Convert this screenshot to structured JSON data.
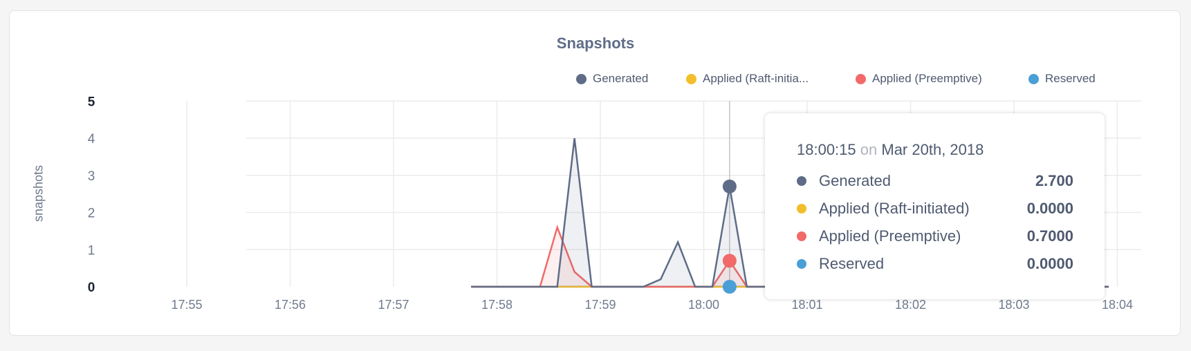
{
  "chart_data": {
    "type": "area",
    "title": "Snapshots",
    "ylabel": "snapshots",
    "xlabel": "",
    "ylim": [
      0,
      5
    ],
    "y_ticks": [
      "0",
      "1",
      "2",
      "3",
      "4",
      "5"
    ],
    "xlim": [
      "17:54:00",
      "18:04:15"
    ],
    "x_ticks": [
      "17:55",
      "17:56",
      "17:57",
      "17:58",
      "17:59",
      "18:00",
      "18:01",
      "18:02",
      "18:03",
      "18:04"
    ],
    "grid": true,
    "legend_placement": "top-right",
    "x": [
      "17:57:45",
      "17:57:55",
      "17:58:05",
      "17:58:15",
      "17:58:25",
      "17:58:35",
      "17:58:45",
      "17:58:55",
      "17:59:05",
      "17:59:15",
      "17:59:25",
      "17:59:35",
      "17:59:45",
      "17:59:55",
      "18:00:05",
      "18:00:15",
      "18:00:25",
      "18:00:35",
      "18:00:45",
      "18:00:55",
      "18:01:05",
      "18:01:15",
      "18:01:25",
      "18:01:35",
      "18:01:45",
      "18:01:55",
      "18:02:05",
      "18:02:15",
      "18:02:25",
      "18:02:35",
      "18:02:45",
      "18:02:55",
      "18:03:05",
      "18:03:15",
      "18:03:25",
      "18:03:35",
      "18:03:45",
      "18:03:55"
    ],
    "series": [
      {
        "name": "Generated",
        "color": "#5f6c87",
        "values": [
          0,
          0,
          0,
          0,
          0,
          0,
          4,
          0,
          0,
          0,
          0,
          0.2,
          1.2,
          0,
          0,
          2.7,
          0,
          0,
          0,
          0,
          0,
          0,
          0,
          0,
          0,
          0,
          0,
          0,
          0,
          0,
          0,
          0,
          0,
          0,
          0,
          0,
          0,
          0
        ]
      },
      {
        "name": "Applied (Raft-initiated)",
        "legend_label": "Applied (Raft-initia...",
        "color": "#f2be2c",
        "values": [
          0,
          0,
          0,
          0,
          0,
          0,
          0,
          0,
          0,
          0,
          0,
          0,
          0,
          0,
          0,
          0,
          0,
          0,
          0,
          0,
          0,
          0,
          0,
          0,
          0,
          0,
          0,
          0,
          0,
          0,
          0,
          0,
          0,
          0,
          0,
          0,
          0,
          0
        ]
      },
      {
        "name": "Applied (Preemptive)",
        "color": "#f16969",
        "values": [
          0,
          0,
          0,
          0,
          0,
          1.6,
          0.4,
          0,
          0,
          0,
          0,
          0,
          0,
          0,
          0,
          0.7,
          0,
          0,
          0,
          0,
          0,
          0,
          0,
          0,
          0,
          0,
          0,
          0,
          0,
          0,
          0,
          0,
          0,
          0,
          0,
          0,
          0,
          0
        ]
      },
      {
        "name": "Reserved",
        "color": "#4a9fd6",
        "values": [
          0,
          0,
          0,
          0,
          0,
          0,
          0,
          0,
          0,
          0,
          0,
          0,
          0,
          0,
          0,
          0,
          0,
          0,
          0,
          0,
          0,
          0,
          0,
          0,
          0,
          0,
          0,
          0,
          0,
          0,
          0,
          0,
          0,
          0,
          0,
          0,
          0,
          0
        ]
      }
    ],
    "hover": {
      "time": "18:00:15",
      "on": "on",
      "date": "Mar 20th, 2018",
      "values": [
        "2.700",
        "0.0000",
        "0.7000",
        "0.0000"
      ]
    }
  }
}
